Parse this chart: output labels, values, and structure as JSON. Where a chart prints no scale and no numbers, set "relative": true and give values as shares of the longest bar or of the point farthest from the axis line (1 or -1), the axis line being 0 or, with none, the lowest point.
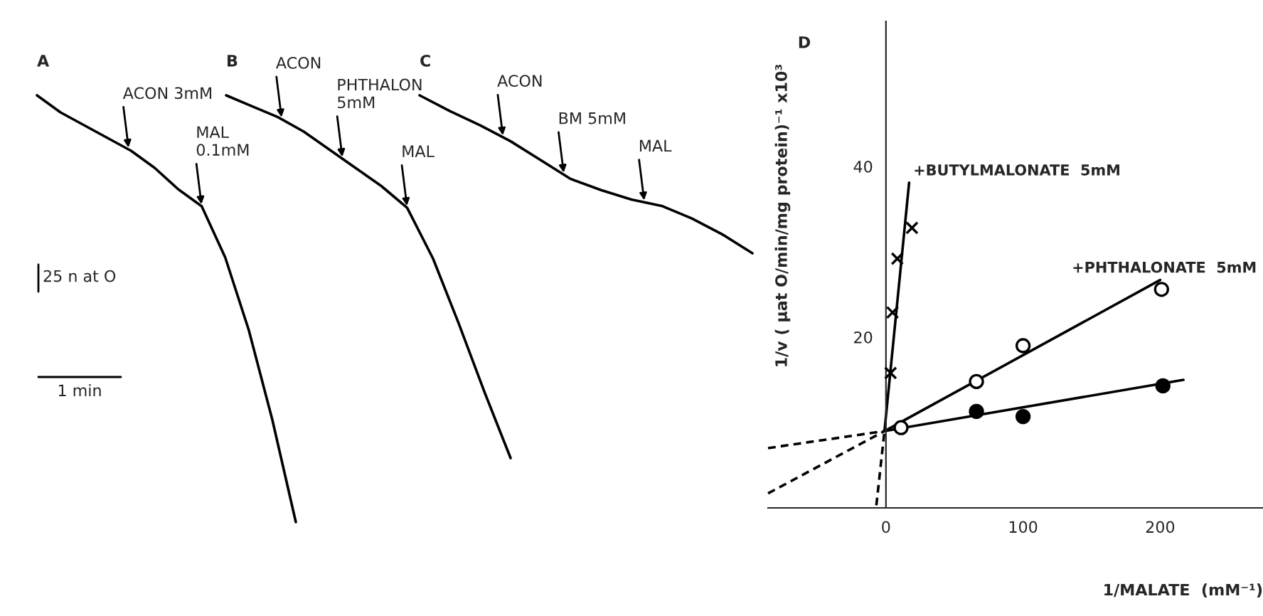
{
  "chart_data": [
    {
      "type": "line",
      "title": "A",
      "relative": true,
      "series": [
        {
          "color": "#000000",
          "values": [
            1,
            0.96,
            0.93,
            0.9,
            0.87,
            0.83,
            0.78,
            0.74,
            0.62,
            0.45,
            0.24,
            0
          ]
        }
      ],
      "categories": [
        null,
        null,
        null,
        null,
        null,
        null,
        null,
        null,
        null,
        null,
        null,
        null
      ],
      "annotations": [
        "ACON 3mM",
        "MAL\n0.1mM",
        "25 n at O",
        "1 min"
      ]
    },
    {
      "type": "line",
      "title": "B",
      "relative": true,
      "series": [
        {
          "color": "#000000",
          "values": [
            1,
            0.97,
            0.94,
            0.9,
            0.85,
            0.8,
            0.75,
            0.69,
            0.55,
            0.37,
            0.18,
            0
          ]
        }
      ],
      "categories": [
        null,
        null,
        null,
        null,
        null,
        null,
        null,
        null,
        null,
        null,
        null,
        null
      ],
      "annotations": [
        "ACON",
        "PHTHALON\n5mM",
        "MAL"
      ]
    },
    {
      "type": "line",
      "title": "C",
      "relative": true,
      "series": [
        {
          "color": "#000000",
          "values": [
            1,
            0.9,
            0.81,
            0.71,
            0.59,
            0.47,
            0.4,
            0.34,
            0.3,
            0.22,
            0.12,
            0
          ]
        }
      ],
      "categories": [
        null,
        null,
        null,
        null,
        null,
        null,
        null,
        null,
        null,
        null,
        null,
        null
      ],
      "annotations": [
        "ACON",
        "BM 5mM",
        "MAL"
      ]
    },
    {
      "type": "scatter",
      "title": "D",
      "xlabel": "1/MALATE  (mM⁻¹)",
      "ylabel": "1/v ( µat O/min/mg protein)⁻¹ x10³",
      "xlim": [
        -86,
        275
      ],
      "ylim": [
        0,
        57
      ],
      "xticks": [
        0,
        100,
        200
      ],
      "yticks": [
        20,
        40
      ],
      "grid": false,
      "legend": false,
      "series": [
        {
          "color": "#000000",
          "marker": "circle",
          "x": [
            66,
            100,
            202
          ],
          "values": [
            11.3,
            10.7,
            14.3
          ]
        },
        {
          "color": "#ffffff",
          "marker": "circle",
          "x": [
            11,
            66,
            100,
            201
          ],
          "values": [
            9.4,
            14.8,
            19.0,
            25.6
          ]
        },
        {
          "color": "#000000",
          "marker": "cross",
          "x": [
            3.4,
            4.8,
            8.3,
            19
          ],
          "values": [
            15.8,
            22.9,
            29.2,
            32.8
          ]
        },
        {
          "type": "line",
          "color": "#000000",
          "marker": "none",
          "line_style": "solid",
          "x": [
            -1,
            217
          ],
          "values": [
            9.0,
            15.0
          ]
        },
        {
          "type": "line",
          "name": "+PHTHALONATE  5mM",
          "color": "#000000",
          "marker": "none",
          "line_style": "solid",
          "x": [
            -1,
            200
          ],
          "values": [
            9.0,
            26.7
          ]
        },
        {
          "type": "line",
          "name": "+BUTYLMALONATE  5mM",
          "color": "#000000",
          "marker": "none",
          "line_style": "solid",
          "x": [
            -1,
            16.9
          ],
          "values": [
            9.1,
            38.1
          ]
        },
        {
          "type": "line",
          "color": "#000000",
          "marker": "none",
          "line_style": "dashed",
          "x": [
            -86,
            -1
          ],
          "values": [
            7.0,
            9.0
          ]
        },
        {
          "type": "line",
          "color": "#000000",
          "marker": "none",
          "line_style": "dashed",
          "x": [
            -86,
            -1
          ],
          "values": [
            1.7,
            9.0
          ]
        },
        {
          "type": "line",
          "color": "#000000",
          "marker": "none",
          "line_style": "dashed",
          "x": [
            -7,
            -1
          ],
          "values": [
            0.3,
            9.1
          ]
        }
      ]
    }
  ]
}
